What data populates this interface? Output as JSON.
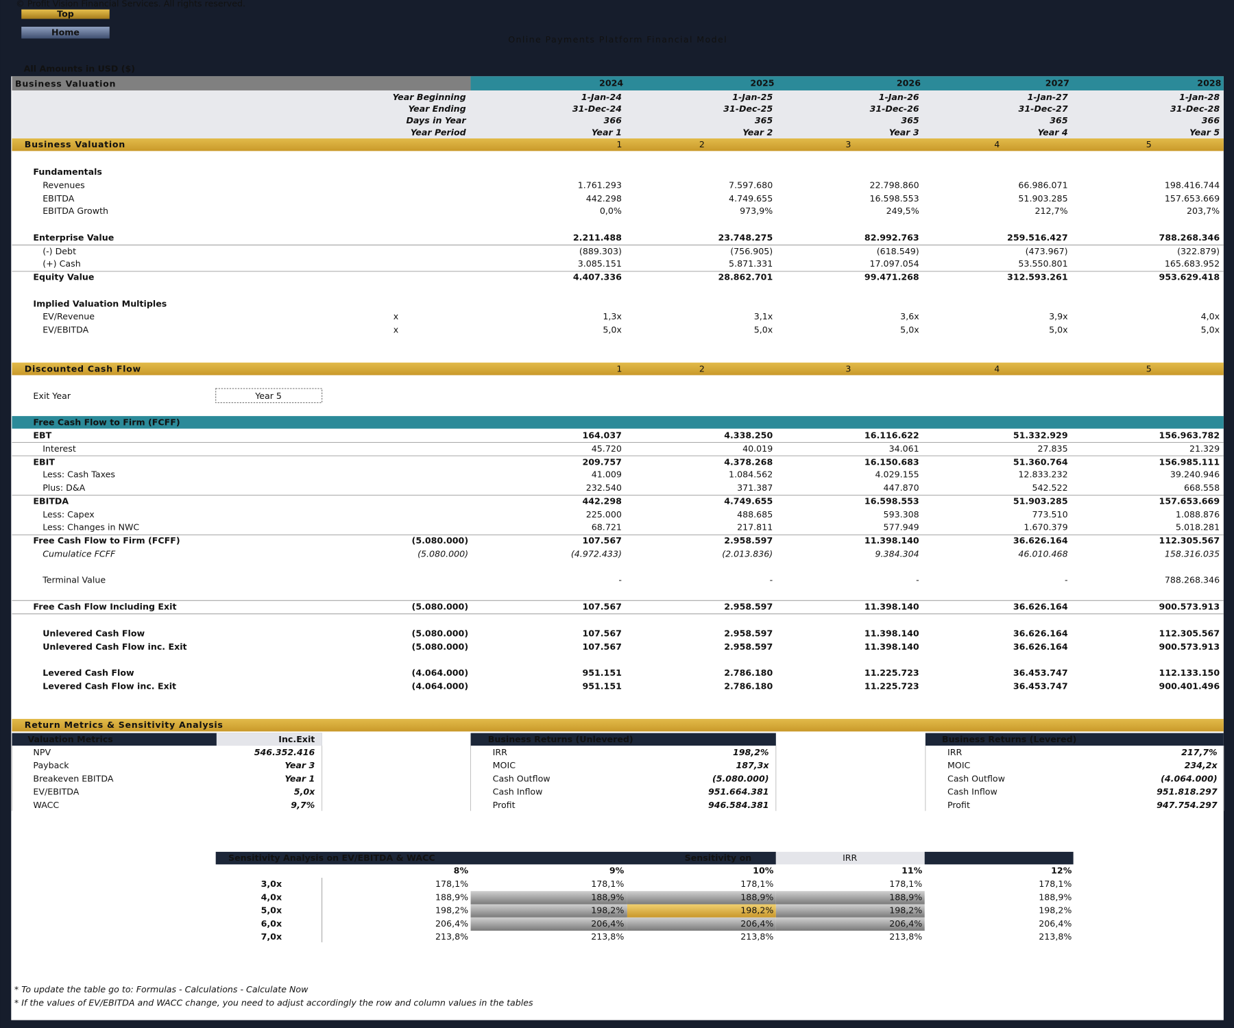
{
  "header": {
    "copyright": "© Profit Vision Financial Services. All rights reserved.",
    "buttons": [
      "Top",
      "Home"
    ],
    "title": "Online Payments Platform Financial Model",
    "amounts_note": "All Amounts in  USD ($)"
  },
  "valuation_header": {
    "title": "Business Valuation",
    "years": [
      2024,
      2025,
      2026,
      2027,
      2028
    ]
  },
  "timeline": [
    {
      "label": "Year Beginning",
      "values": [
        "1-Jan-24",
        "1-Jan-25",
        "1-Jan-26",
        "1-Jan-27",
        "1-Jan-28"
      ]
    },
    {
      "label": "Year Ending",
      "values": [
        "31-Dec-24",
        "31-Dec-25",
        "31-Dec-26",
        "31-Dec-27",
        "31-Dec-28"
      ]
    },
    {
      "label": "Days in Year",
      "values": [
        "366",
        "365",
        "365",
        "365",
        "366"
      ]
    },
    {
      "label": "Year Period",
      "values": [
        "Year 1",
        "Year 2",
        "Year 3",
        "Year 4",
        "Year 5"
      ]
    }
  ],
  "business_valuation": {
    "title": "Business Valuation",
    "periods": [
      1,
      2,
      3,
      4,
      5
    ],
    "rows": [
      {
        "label": "Fundamentals"
      },
      {
        "label": "Revenues",
        "values": [
          "1.761.293",
          "7.597.680",
          "22.798.860",
          "66.986.071",
          "198.416.744"
        ]
      },
      {
        "label": "EBITDA",
        "values": [
          "442.298",
          "4.749.655",
          "16.598.553",
          "51.903.285",
          "157.653.669"
        ]
      },
      {
        "label": "EBITDA Growth",
        "values": [
          "0,0%",
          "973,9%",
          "249,5%",
          "212,7%",
          "203,7%"
        ]
      },
      {
        "label": "Enterprise Value",
        "values": [
          "2.211.488",
          "23.748.275",
          "82.992.763",
          "259.516.427",
          "788.268.346"
        ]
      },
      {
        "label": "(-) Debt",
        "values": [
          "(889.303)",
          "(756.905)",
          "(618.549)",
          "(473.967)",
          "(322.879)"
        ]
      },
      {
        "label": "(+) Cash",
        "values": [
          "3.085.151",
          "5.871.331",
          "17.097.054",
          "53.550.801",
          "165.683.952"
        ]
      },
      {
        "label": "Equity Value",
        "values": [
          "4.407.336",
          "28.862.701",
          "99.471.268",
          "312.593.261",
          "953.629.418"
        ]
      },
      {
        "label": "Implied Valuation Multiples"
      },
      {
        "label": "EV/Revenue",
        "pre": "x",
        "values": [
          "1,3x",
          "3,1x",
          "3,6x",
          "3,9x",
          "4,0x"
        ]
      },
      {
        "label": "EV/EBITDA",
        "pre": "x",
        "values": [
          "5,0x",
          "5,0x",
          "5,0x",
          "5,0x",
          "5,0x"
        ]
      }
    ]
  },
  "dcf": {
    "title": "Discounted Cash Flow",
    "periods": [
      1,
      2,
      3,
      4,
      5
    ],
    "exit_year": {
      "label": "Exit Year",
      "value": "Year 5"
    },
    "fcff_title": "Free Cash Flow to Firm (FCFF)",
    "rows": [
      {
        "label": "EBT",
        "values": [
          "164.037",
          "4.338.250",
          "16.116.622",
          "51.332.929",
          "156.963.782"
        ]
      },
      {
        "label": "Interest",
        "values": [
          "45.720",
          "40.019",
          "34.061",
          "27.835",
          "21.329"
        ]
      },
      {
        "label": "EBIT",
        "values": [
          "209.757",
          "4.378.268",
          "16.150.683",
          "51.360.764",
          "156.985.111"
        ]
      },
      {
        "label": "Less: Cash Taxes",
        "values": [
          "41.009",
          "1.084.562",
          "4.029.155",
          "12.833.232",
          "39.240.946"
        ]
      },
      {
        "label": "Plus: D&A",
        "values": [
          "232.540",
          "371.387",
          "447.870",
          "542.522",
          "668.558"
        ]
      },
      {
        "label": "EBITDA",
        "values": [
          "442.298",
          "4.749.655",
          "16.598.553",
          "51.903.285",
          "157.653.669"
        ]
      },
      {
        "label": "Less: Capex",
        "values": [
          "225.000",
          "488.685",
          "593.308",
          "773.510",
          "1.088.876"
        ]
      },
      {
        "label": "Less: Changes in NWC",
        "values": [
          "68.721",
          "217.811",
          "577.949",
          "1.670.379",
          "5.018.281"
        ]
      },
      {
        "label": "Free Cash Flow to Firm (FCFF)",
        "pre": "(5.080.000)",
        "values": [
          "107.567",
          "2.958.597",
          "11.398.140",
          "36.626.164",
          "112.305.567"
        ]
      },
      {
        "label": "Cumulatice FCFF",
        "pre": "(5.080.000)",
        "values": [
          "(4.972.433)",
          "(2.013.836)",
          "9.384.304",
          "46.010.468",
          "158.316.035"
        ]
      },
      {
        "label": "Terminal Value",
        "values": [
          "-",
          "-",
          "-",
          "-",
          "788.268.346"
        ]
      },
      {
        "label": "Free Cash Flow Including Exit",
        "pre": "(5.080.000)",
        "values": [
          "107.567",
          "2.958.597",
          "11.398.140",
          "36.626.164",
          "900.573.913"
        ]
      },
      {
        "label": "Unlevered Cash Flow",
        "pre": "(5.080.000)",
        "values": [
          "107.567",
          "2.958.597",
          "11.398.140",
          "36.626.164",
          "112.305.567"
        ]
      },
      {
        "label": "Unlevered Cash Flow inc. Exit",
        "pre": "(5.080.000)",
        "values": [
          "107.567",
          "2.958.597",
          "11.398.140",
          "36.626.164",
          "900.573.913"
        ]
      },
      {
        "label": "Levered Cash Flow",
        "pre": "(4.064.000)",
        "values": [
          "951.151",
          "2.786.180",
          "11.225.723",
          "36.453.747",
          "112.133.150"
        ]
      },
      {
        "label": "Levered Cash Flow inc. Exit",
        "pre": "(4.064.000)",
        "values": [
          "951.151",
          "2.786.180",
          "11.225.723",
          "36.453.747",
          "900.401.496"
        ]
      }
    ]
  },
  "returns": {
    "title": "Return Metrics & Sensitivity Analysis",
    "tables": [
      {
        "title": "Valuation Metrics",
        "column": "Inc.Exit",
        "rows": [
          [
            "NPV",
            "546.352.416"
          ],
          [
            "Payback",
            "Year 3"
          ],
          [
            "Breakeven EBITDA",
            "Year 1"
          ],
          [
            "EV/EBITDA",
            "5,0x"
          ],
          [
            "WACC",
            "9,7%"
          ]
        ]
      },
      {
        "title": "Business Returns (Unlevered)",
        "rows": [
          [
            "IRR",
            "198,2%"
          ],
          [
            "MOIC",
            "187,3x"
          ],
          [
            "Cash Outflow",
            "(5.080.000)"
          ],
          [
            "Cash Inflow",
            "951.664.381"
          ],
          [
            "Profit",
            "946.584.381"
          ]
        ]
      },
      {
        "title": "Business Returns (Levered)",
        "rows": [
          [
            "IRR",
            "217,7%"
          ],
          [
            "MOIC",
            "234,2x"
          ],
          [
            "Cash Outflow",
            "(4.064.000)"
          ],
          [
            "Cash Inflow",
            "951.818.297"
          ],
          [
            "Profit",
            "947.754.297"
          ]
        ]
      }
    ]
  },
  "sensitivity": {
    "title": "Sensitivity Analysis on EV/EBITDA & WACC",
    "sensitivity_label": "Sensitivity on",
    "metric": "IRR",
    "columns": [
      "8%",
      "9%",
      "10%",
      "11%",
      "12%"
    ],
    "rows": [
      {
        "label": "3,0x",
        "values": [
          "178,1%",
          "178,1%",
          "178,1%",
          "178,1%",
          "178,1%"
        ]
      },
      {
        "label": "4,0x",
        "values": [
          "188,9%",
          "188,9%",
          "188,9%",
          "188,9%",
          "188,9%"
        ]
      },
      {
        "label": "5,0x",
        "values": [
          "198,2%",
          "198,2%",
          "198,2%",
          "198,2%",
          "198,2%"
        ]
      },
      {
        "label": "6,0x",
        "values": [
          "206,4%",
          "206,4%",
          "206,4%",
          "206,4%",
          "206,4%"
        ]
      },
      {
        "label": "7,0x",
        "values": [
          "213,8%",
          "213,8%",
          "213,8%",
          "213,8%",
          "213,8%"
        ]
      }
    ]
  },
  "footnotes": [
    "* To update the table go to: Formulas - Calculations - Calculate Now",
    "* If the values of EV/EBITDA and WACC change, you need to adjust accordingly the row and column values in the tables"
  ]
}
